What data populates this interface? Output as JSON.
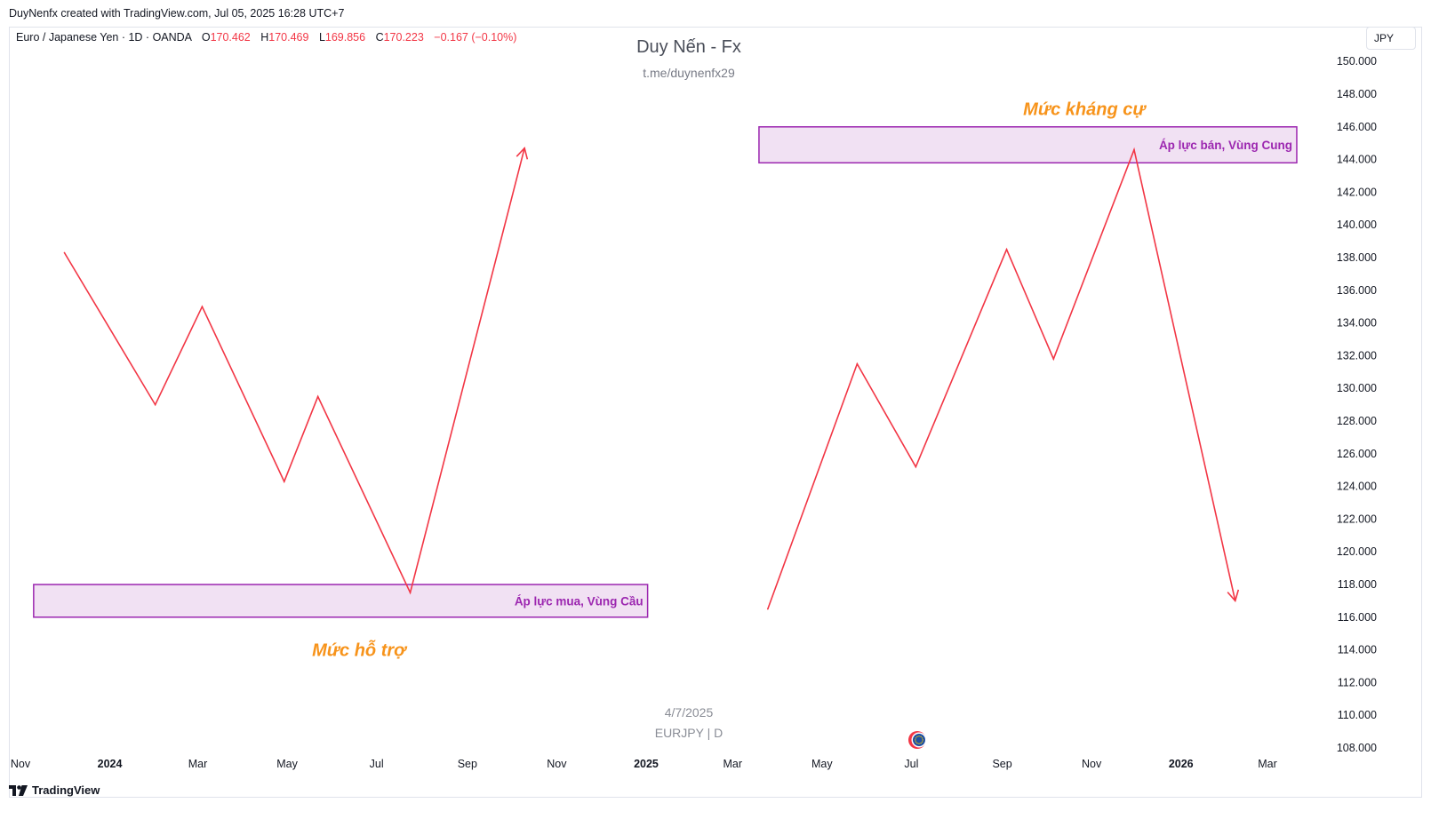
{
  "header": {
    "credit": "DuyNenfx created with TradingView.com, Jul 05, 2025 16:28 UTC+7"
  },
  "symbol": {
    "name": "Euro / Japanese Yen · 1D · OANDA",
    "o_label": "O",
    "o_value": "170.462",
    "h_label": "H",
    "h_value": "170.469",
    "l_label": "L",
    "l_value": "169.856",
    "c_label": "C",
    "c_value": "170.223",
    "change": "−0.167 (−0.10%)"
  },
  "watermark": {
    "title": "Duy Nến - Fx",
    "subtitle": "t.me/duynenfx29",
    "date": "4/7/2025",
    "symbol": "EURJPY | D"
  },
  "currency_button": "JPY",
  "footer": {
    "brand": "TradingView"
  },
  "colors": {
    "line": "#f23645",
    "zone_fill": "#f1e1f3",
    "zone_border": "#9c27b0",
    "zone_text": "#9c27b0",
    "level_text": "#f7931a"
  },
  "chart_data": {
    "type": "line",
    "ylim": [
      108,
      151
    ],
    "y_ticks": [
      "150.000",
      "148.000",
      "146.000",
      "144.000",
      "142.000",
      "140.000",
      "138.000",
      "136.000",
      "134.000",
      "132.000",
      "130.000",
      "128.000",
      "126.000",
      "124.000",
      "122.000",
      "120.000",
      "118.000",
      "116.000",
      "114.000",
      "112.000",
      "110.000",
      "108.000"
    ],
    "x_ticks": [
      {
        "label": "Nov",
        "date": "2023-11-01",
        "bold": false
      },
      {
        "label": "2024",
        "date": "2024-01-01",
        "bold": true
      },
      {
        "label": "Mar",
        "date": "2024-03-01",
        "bold": false
      },
      {
        "label": "May",
        "date": "2024-05-01",
        "bold": false
      },
      {
        "label": "Jul",
        "date": "2024-07-01",
        "bold": false
      },
      {
        "label": "Sep",
        "date": "2024-09-01",
        "bold": false
      },
      {
        "label": "Nov",
        "date": "2024-11-01",
        "bold": false
      },
      {
        "label": "2025",
        "date": "2025-01-01",
        "bold": true
      },
      {
        "label": "Mar",
        "date": "2025-03-01",
        "bold": false
      },
      {
        "label": "May",
        "date": "2025-05-01",
        "bold": false
      },
      {
        "label": "Jul",
        "date": "2025-07-01",
        "bold": false
      },
      {
        "label": "Sep",
        "date": "2025-09-01",
        "bold": false
      },
      {
        "label": "Nov",
        "date": "2025-11-01",
        "bold": false
      },
      {
        "label": "2026",
        "date": "2026-01-01",
        "bold": true
      },
      {
        "label": "Mar",
        "date": "2026-03-01",
        "bold": false
      }
    ],
    "series": [
      {
        "points": [
          {
            "x": "2023-12-01",
            "y": 138.3
          },
          {
            "x": "2024-02-01",
            "y": 129.0
          },
          {
            "x": "2024-03-04",
            "y": 135.0
          },
          {
            "x": "2024-04-29",
            "y": 124.3
          },
          {
            "x": "2024-05-22",
            "y": 129.5
          },
          {
            "x": "2024-07-24",
            "y": 117.5
          },
          {
            "x": "2024-10-10",
            "y": 144.7
          }
        ],
        "arrow_end": true
      },
      {
        "points": [
          {
            "x": "2025-03-25",
            "y": 116.5
          },
          {
            "x": "2025-05-25",
            "y": 131.5
          },
          {
            "x": "2025-07-04",
            "y": 125.2
          },
          {
            "x": "2025-09-04",
            "y": 138.5
          },
          {
            "x": "2025-10-06",
            "y": 131.8
          },
          {
            "x": "2025-11-30",
            "y": 144.6
          },
          {
            "x": "2026-02-07",
            "y": 117.0
          }
        ],
        "arrow_end": true
      }
    ],
    "zones": [
      {
        "x1": "2023-11-10",
        "x2": "2025-01-02",
        "y1": 116.0,
        "y2": 118.0,
        "label": "Áp lực mua, Vùng Cầu"
      },
      {
        "x1": "2025-03-19",
        "x2": "2026-03-21",
        "y1": 143.8,
        "y2": 146.0,
        "label": "Áp lực bán, Vùng Cung"
      }
    ],
    "annotations": [
      {
        "text": "Mức hỗ trợ",
        "x": "2024-06-19",
        "y": 114.0
      },
      {
        "text": "Mức kháng cự",
        "x": "2025-10-27",
        "y": 147.1
      }
    ]
  }
}
